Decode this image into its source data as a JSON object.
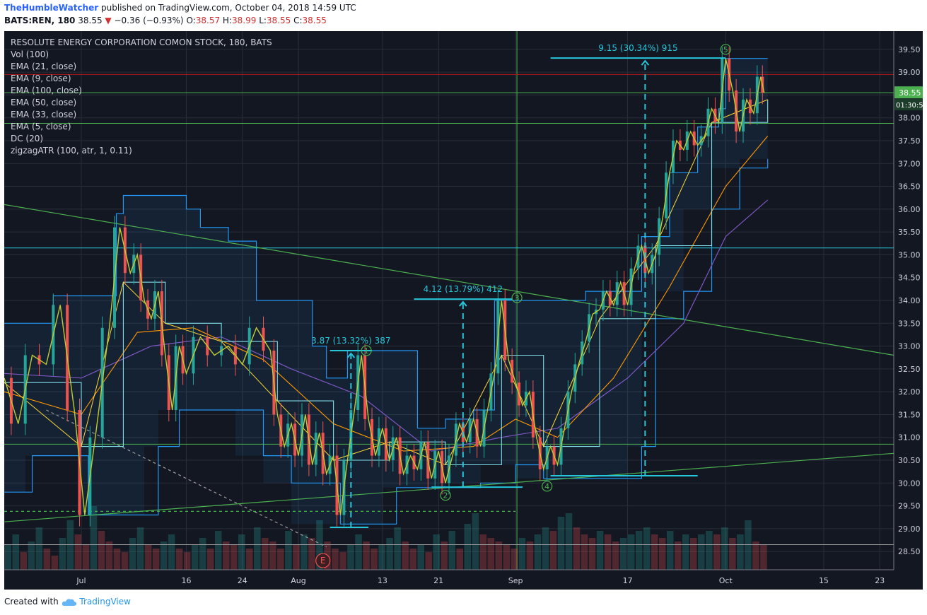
{
  "header": {
    "author": "TheHumbleWatcher",
    "published_text": "published on TradingView.com, October 04, 2018 14:59 UTC",
    "symbol": "BATS:REN, 180",
    "last": "38.55",
    "change_arrow": "▼",
    "change": "−0.36 (−0.93%)",
    "o_label": "O:",
    "o_value": "38.57",
    "h_label": "H:",
    "h_value": "38.99",
    "l_label": "L:",
    "l_value": "38.55",
    "c_label": "C:",
    "c_value": "38.55"
  },
  "legend": [
    "RESOLUTE ENERGY CORPORATION COMON STOCK, 180, BATS",
    "Vol (100)",
    "EMA (21, close)",
    "EMA (9, close)",
    "EMA (100, close)",
    "EMA (50, close)",
    "EMA (33, close)",
    "EMA (5, close)",
    "DC (20)",
    "zigzagATR (100, atr, 1, 0.11)"
  ],
  "price_badge": "38.55",
  "countdown_badge": "01:30:5",
  "footer": {
    "created_with": "Created with",
    "brand": "TradingView"
  },
  "colors": {
    "background": "#131722",
    "grid": "#2a2e39",
    "candle_up": "#26a69a",
    "candle_down": "#ef5350",
    "donchian": "#2196f3",
    "trendline": "#4caf50",
    "measure": "#26c6da",
    "price_badge": "#4caf50"
  },
  "chart_data": {
    "type": "line",
    "symbol": "REN",
    "timeframe": "180",
    "ylim": [
      28.1,
      39.9
    ],
    "y_ticks": [
      "39.50",
      "39.00",
      "38.50",
      "38.00",
      "37.50",
      "37.00",
      "36.50",
      "36.00",
      "35.50",
      "35.00",
      "34.50",
      "34.00",
      "33.50",
      "33.00",
      "32.50",
      "32.00",
      "31.50",
      "31.00",
      "30.50",
      "30.00",
      "29.50",
      "29.00",
      "28.50"
    ],
    "x_ticks": [
      "Jul",
      "16",
      "24",
      "Aug",
      "13",
      "21",
      "Sep",
      "17",
      "Oct",
      "15",
      "23"
    ],
    "x_tick_days": [
      0,
      15,
      23,
      31,
      43,
      51,
      62,
      78,
      92,
      106,
      114
    ],
    "xlim_days": [
      -11,
      116
    ],
    "price_path": [
      {
        "d": -11,
        "p": 32.3
      },
      {
        "d": -9,
        "p": 31.3
      },
      {
        "d": -7,
        "p": 32.8
      },
      {
        "d": -5,
        "p": 32.6
      },
      {
        "d": -3,
        "p": 33.9
      },
      {
        "d": -1,
        "p": 31.6
      },
      {
        "d": 0.5,
        "p": 29.3
      },
      {
        "d": 2,
        "p": 31.0
      },
      {
        "d": 4,
        "p": 33.4
      },
      {
        "d": 5.5,
        "p": 35.6
      },
      {
        "d": 7,
        "p": 34.6
      },
      {
        "d": 8,
        "p": 35.0
      },
      {
        "d": 9,
        "p": 34.0
      },
      {
        "d": 10,
        "p": 33.6
      },
      {
        "d": 11,
        "p": 34.2
      },
      {
        "d": 12,
        "p": 32.8
      },
      {
        "d": 13,
        "p": 31.6
      },
      {
        "d": 14,
        "p": 33.0
      },
      {
        "d": 15,
        "p": 32.4
      },
      {
        "d": 17,
        "p": 33.2
      },
      {
        "d": 19,
        "p": 32.8
      },
      {
        "d": 21,
        "p": 33.0
      },
      {
        "d": 23,
        "p": 32.6
      },
      {
        "d": 25,
        "p": 33.4
      },
      {
        "d": 27,
        "p": 32.9
      },
      {
        "d": 28,
        "p": 31.5
      },
      {
        "d": 29,
        "p": 30.8
      },
      {
        "d": 30,
        "p": 31.3
      },
      {
        "d": 31,
        "p": 30.6
      },
      {
        "d": 32,
        "p": 31.5
      },
      {
        "d": 33,
        "p": 30.4
      },
      {
        "d": 34,
        "p": 31.1
      },
      {
        "d": 35,
        "p": 30.2
      },
      {
        "d": 36,
        "p": 30.6
      },
      {
        "d": 37,
        "p": 29.3
      },
      {
        "d": 38,
        "p": 30.5
      },
      {
        "d": 39,
        "p": 31.6
      },
      {
        "d": 40,
        "p": 32.8
      },
      {
        "d": 41,
        "p": 31.4
      },
      {
        "d": 42,
        "p": 30.6
      },
      {
        "d": 43,
        "p": 31.2
      },
      {
        "d": 44,
        "p": 30.5
      },
      {
        "d": 45,
        "p": 31.0
      },
      {
        "d": 46,
        "p": 30.2
      },
      {
        "d": 47,
        "p": 30.6
      },
      {
        "d": 48,
        "p": 30.3
      },
      {
        "d": 49,
        "p": 30.9
      },
      {
        "d": 50,
        "p": 30.1
      },
      {
        "d": 51,
        "p": 30.7
      },
      {
        "d": 52,
        "p": 30.0
      },
      {
        "d": 53,
        "p": 30.6
      },
      {
        "d": 54,
        "p": 31.3
      },
      {
        "d": 55,
        "p": 30.9
      },
      {
        "d": 56,
        "p": 31.4
      },
      {
        "d": 57,
        "p": 30.8
      },
      {
        "d": 58,
        "p": 31.6
      },
      {
        "d": 59,
        "p": 32.4
      },
      {
        "d": 60,
        "p": 34.0
      },
      {
        "d": 61,
        "p": 32.7
      },
      {
        "d": 62,
        "p": 32.2
      },
      {
        "d": 63,
        "p": 31.7
      },
      {
        "d": 64,
        "p": 32.0
      },
      {
        "d": 65,
        "p": 31.0
      },
      {
        "d": 66,
        "p": 30.3
      },
      {
        "d": 67,
        "p": 30.8
      },
      {
        "d": 68,
        "p": 30.4
      },
      {
        "d": 69,
        "p": 31.2
      },
      {
        "d": 70,
        "p": 32.0
      },
      {
        "d": 71,
        "p": 32.6
      },
      {
        "d": 72,
        "p": 33.1
      },
      {
        "d": 73,
        "p": 33.7
      },
      {
        "d": 74,
        "p": 33.8
      },
      {
        "d": 75,
        "p": 34.2
      },
      {
        "d": 76,
        "p": 33.9
      },
      {
        "d": 77,
        "p": 34.4
      },
      {
        "d": 78,
        "p": 33.9
      },
      {
        "d": 79,
        "p": 34.7
      },
      {
        "d": 80,
        "p": 35.2
      },
      {
        "d": 81,
        "p": 34.6
      },
      {
        "d": 82,
        "p": 35.0
      },
      {
        "d": 83,
        "p": 35.8
      },
      {
        "d": 84,
        "p": 36.8
      },
      {
        "d": 85,
        "p": 37.5
      },
      {
        "d": 86,
        "p": 37.3
      },
      {
        "d": 87,
        "p": 37.7
      },
      {
        "d": 88,
        "p": 37.4
      },
      {
        "d": 89,
        "p": 37.6
      },
      {
        "d": 90,
        "p": 38.2
      },
      {
        "d": 91,
        "p": 37.9
      },
      {
        "d": 92,
        "p": 39.3
      },
      {
        "d": 93,
        "p": 38.6
      },
      {
        "d": 94,
        "p": 37.7
      },
      {
        "d": 95,
        "p": 38.4
      },
      {
        "d": 96,
        "p": 38.1
      },
      {
        "d": 97,
        "p": 38.9
      },
      {
        "d": 97.5,
        "p": 38.55
      }
    ],
    "donchian_upper": [
      {
        "d": -11,
        "p": 33.5
      },
      {
        "d": -5,
        "p": 33.5
      },
      {
        "d": -4,
        "p": 34.1
      },
      {
        "d": 4,
        "p": 34.1
      },
      {
        "d": 5,
        "p": 35.9
      },
      {
        "d": 6,
        "p": 36.3
      },
      {
        "d": 14,
        "p": 36.3
      },
      {
        "d": 15,
        "p": 36.0
      },
      {
        "d": 17,
        "p": 35.6
      },
      {
        "d": 21,
        "p": 35.3
      },
      {
        "d": 25,
        "p": 34.0
      },
      {
        "d": 33,
        "p": 33.0
      },
      {
        "d": 35,
        "p": 32.3
      },
      {
        "d": 38,
        "p": 32.9
      },
      {
        "d": 46,
        "p": 32.9
      },
      {
        "d": 48,
        "p": 31.2
      },
      {
        "d": 52,
        "p": 31.4
      },
      {
        "d": 56,
        "p": 31.6
      },
      {
        "d": 59,
        "p": 34.0
      },
      {
        "d": 68,
        "p": 34.0
      },
      {
        "d": 72,
        "p": 34.2
      },
      {
        "d": 78,
        "p": 34.2
      },
      {
        "d": 80,
        "p": 35.4
      },
      {
        "d": 84,
        "p": 36.8
      },
      {
        "d": 88,
        "p": 37.8
      },
      {
        "d": 91,
        "p": 38.2
      },
      {
        "d": 92,
        "p": 39.3
      },
      {
        "d": 98,
        "p": 39.3
      }
    ],
    "donchian_lower": [
      {
        "d": -11,
        "p": 29.8
      },
      {
        "d": -8,
        "p": 29.8
      },
      {
        "d": -7,
        "p": 30.6
      },
      {
        "d": 0,
        "p": 30.6
      },
      {
        "d": 1,
        "p": 29.3
      },
      {
        "d": 9,
        "p": 29.3
      },
      {
        "d": 11,
        "p": 30.8
      },
      {
        "d": 14,
        "p": 31.6
      },
      {
        "d": 22,
        "p": 31.6
      },
      {
        "d": 26,
        "p": 30.6
      },
      {
        "d": 30,
        "p": 30.0
      },
      {
        "d": 37,
        "p": 29.1
      },
      {
        "d": 43,
        "p": 29.1
      },
      {
        "d": 45,
        "p": 29.9
      },
      {
        "d": 52,
        "p": 29.9
      },
      {
        "d": 57,
        "p": 30.0
      },
      {
        "d": 62,
        "p": 30.4
      },
      {
        "d": 66,
        "p": 30.1
      },
      {
        "d": 78,
        "p": 30.1
      },
      {
        "d": 80,
        "p": 30.8
      },
      {
        "d": 82,
        "p": 33.6
      },
      {
        "d": 86,
        "p": 34.2
      },
      {
        "d": 90,
        "p": 36.0
      },
      {
        "d": 94,
        "p": 36.9
      },
      {
        "d": 98,
        "p": 37.1
      }
    ],
    "ema_slow": [
      {
        "d": -11,
        "p": 32.4
      },
      {
        "d": 0,
        "p": 32.3
      },
      {
        "d": 10,
        "p": 33.0
      },
      {
        "d": 20,
        "p": 33.2
      },
      {
        "d": 30,
        "p": 32.5
      },
      {
        "d": 40,
        "p": 31.9
      },
      {
        "d": 50,
        "p": 30.7
      },
      {
        "d": 60,
        "p": 31.0
      },
      {
        "d": 68,
        "p": 31.2
      },
      {
        "d": 78,
        "p": 32.3
      },
      {
        "d": 86,
        "p": 33.5
      },
      {
        "d": 92,
        "p": 35.4
      },
      {
        "d": 98,
        "p": 36.2
      }
    ],
    "ema_mid": [
      {
        "d": -11,
        "p": 32.0
      },
      {
        "d": 0,
        "p": 31.5
      },
      {
        "d": 8,
        "p": 33.3
      },
      {
        "d": 16,
        "p": 33.4
      },
      {
        "d": 26,
        "p": 32.7
      },
      {
        "d": 36,
        "p": 31.3
      },
      {
        "d": 46,
        "p": 30.7
      },
      {
        "d": 56,
        "p": 30.8
      },
      {
        "d": 62,
        "p": 31.4
      },
      {
        "d": 68,
        "p": 31.0
      },
      {
        "d": 76,
        "p": 32.3
      },
      {
        "d": 84,
        "p": 34.3
      },
      {
        "d": 92,
        "p": 36.5
      },
      {
        "d": 98,
        "p": 37.6
      }
    ],
    "ema_fast": [
      {
        "d": -11,
        "p": 32.2
      },
      {
        "d": 0,
        "p": 30.8
      },
      {
        "d": 6,
        "p": 34.4
      },
      {
        "d": 12,
        "p": 33.5
      },
      {
        "d": 20,
        "p": 33.1
      },
      {
        "d": 28,
        "p": 31.8
      },
      {
        "d": 36,
        "p": 30.5
      },
      {
        "d": 44,
        "p": 30.9
      },
      {
        "d": 52,
        "p": 30.4
      },
      {
        "d": 60,
        "p": 32.8
      },
      {
        "d": 66,
        "p": 30.8
      },
      {
        "d": 74,
        "p": 33.6
      },
      {
        "d": 82,
        "p": 35.2
      },
      {
        "d": 90,
        "p": 37.9
      },
      {
        "d": 98,
        "p": 38.4
      }
    ],
    "horizontal_levels": [
      {
        "p": 38.95,
        "color": "#b71c1c"
      },
      {
        "p": 38.55,
        "color": "#4caf50"
      },
      {
        "p": 37.88,
        "color": "#4caf50"
      },
      {
        "p": 35.15,
        "color": "#26c6da"
      },
      {
        "p": 30.85,
        "color": "#4caf50"
      },
      {
        "p": 28.65,
        "color": "#9e9e9e"
      }
    ],
    "trendlines": [
      {
        "d1": -11,
        "p1": 36.1,
        "d2": 116,
        "p2": 32.8,
        "color": "#4caf50",
        "dash": false
      },
      {
        "d1": -11,
        "p1": 29.15,
        "d2": 116,
        "p2": 30.65,
        "color": "#4caf50",
        "dash": false
      },
      {
        "d1": -5,
        "p1": 31.6,
        "d2": 35,
        "p2": 28.6,
        "color": "#9e9e9e",
        "dash": true
      },
      {
        "d1": -11,
        "p1": 29.38,
        "d2": 62,
        "p2": 29.38,
        "color": "#4caf50",
        "dash": true
      }
    ],
    "measurements": [
      {
        "label": "3.87 (13.32%) 387",
        "d_top": 38.5,
        "d_bottom": 38.5,
        "p_top": 32.9,
        "p_bottom": 29.03,
        "d_left": 35.5,
        "d_right": 41.5,
        "bottom_left": 35.5,
        "bottom_right": 41.0
      },
      {
        "label": "4.12 (13.79%) 412",
        "d_top": 54.5,
        "d_bottom": 54.5,
        "p_top": 34.03,
        "p_bottom": 29.91,
        "d_left": 47.5,
        "d_right": 61.5,
        "bottom_left": 50,
        "bottom_right": 63
      },
      {
        "label": "9.15 (30.34%) 915",
        "d_top": 80.5,
        "d_bottom": 80.5,
        "p_top": 39.31,
        "p_bottom": 30.16,
        "d_left": 67,
        "d_right": 92,
        "bottom_left": 67,
        "bottom_right": 88
      }
    ],
    "wave_markers": [
      {
        "label": "1",
        "d": 40.7,
        "p": 32.9
      },
      {
        "label": "2",
        "d": 52,
        "p": 29.73
      },
      {
        "label": "3",
        "d": 62.2,
        "p": 34.06
      },
      {
        "label": "4",
        "d": 66.5,
        "p": 29.93
      },
      {
        "label": "5",
        "d": 92,
        "p": 39.5
      }
    ],
    "event_marker": {
      "label": "E",
      "d": 34.5,
      "p": 28.3
    },
    "volume": [
      0.35,
      0.5,
      0.25,
      0.4,
      0.6,
      0.3,
      0.2,
      0.45,
      0.7,
      0.5,
      0.35,
      0.9,
      0.55,
      0.4,
      0.3,
      0.25,
      0.45,
      0.6,
      0.35,
      0.3,
      0.4,
      0.5,
      0.3,
      0.25,
      0.35,
      0.45,
      0.3,
      0.55,
      0.4,
      0.35,
      0.5,
      0.3,
      0.6,
      0.45,
      0.4,
      0.3,
      0.55,
      0.35,
      0.5,
      0.45,
      0.7,
      0.4,
      0.3,
      0.25,
      0.35,
      0.5,
      0.4,
      0.3,
      0.35,
      0.45,
      0.6,
      0.4,
      0.3,
      0.35,
      0.25,
      0.5,
      0.4,
      0.55,
      0.3,
      0.65,
      0.8,
      0.5,
      0.45,
      0.4,
      0.35,
      0.3,
      0.45,
      0.4,
      0.5,
      0.6,
      0.55,
      0.75,
      0.8,
      0.6,
      0.5,
      0.45,
      0.55,
      0.5,
      0.4,
      0.45,
      0.5,
      0.55,
      0.6,
      0.5,
      0.45,
      0.55,
      0.4,
      0.5,
      0.45,
      0.5,
      0.55,
      0.5,
      0.6,
      0.45,
      0.5,
      0.7,
      0.4,
      0.35
    ],
    "volume_scale": "relative"
  }
}
